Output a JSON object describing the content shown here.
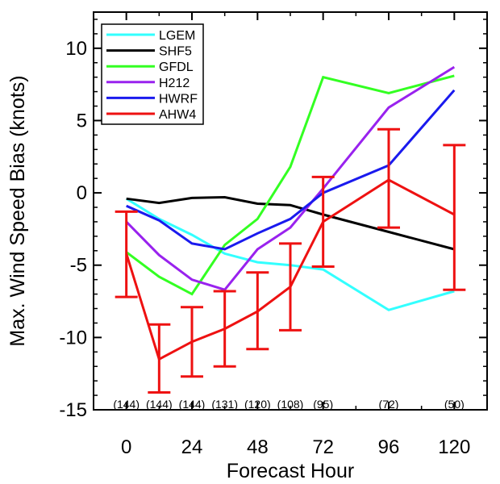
{
  "chart_data": {
    "type": "line",
    "title": "",
    "xlabel": "Forecast Hour",
    "ylabel": "Max. Wind Speed Bias (knots)",
    "xlim": [
      -12,
      132
    ],
    "ylim": [
      -15,
      12.5
    ],
    "xticks": [
      0,
      24,
      48,
      72,
      96,
      120
    ],
    "yticks": [
      -15,
      -10,
      -5,
      0,
      5,
      10
    ],
    "legend_position": "top-left",
    "series": [
      {
        "name": "LGEM",
        "color": "#33ffff",
        "x": [
          0,
          12,
          24,
          36,
          48,
          60,
          72,
          96,
          120
        ],
        "y": [
          -0.4,
          -1.8,
          -2.9,
          -4.2,
          -4.8,
          -5.0,
          -5.3,
          -8.1,
          -6.8
        ]
      },
      {
        "name": "SHF5",
        "color": "#000000",
        "x": [
          0,
          12,
          24,
          36,
          48,
          60,
          72,
          96,
          120
        ],
        "y": [
          -0.4,
          -0.7,
          -0.35,
          -0.3,
          -0.75,
          -0.85,
          -1.5,
          -2.7,
          -3.9
        ]
      },
      {
        "name": "GFDL",
        "color": "#33ff22",
        "x": [
          0,
          12,
          24,
          36,
          48,
          60,
          72,
          96,
          120
        ],
        "y": [
          -4.1,
          -5.8,
          -7.0,
          -3.6,
          -1.8,
          1.8,
          8.0,
          6.9,
          8.1
        ]
      },
      {
        "name": "H212",
        "color": "#9922ee",
        "x": [
          0,
          12,
          24,
          36,
          48,
          60,
          72,
          96,
          120
        ],
        "y": [
          -2.0,
          -4.3,
          -6.0,
          -6.7,
          -3.9,
          -2.4,
          0.3,
          5.9,
          8.7
        ]
      },
      {
        "name": "HWRF",
        "color": "#1a1aee",
        "x": [
          0,
          12,
          24,
          36,
          48,
          60,
          72,
          96,
          120
        ],
        "y": [
          -0.9,
          -1.9,
          -3.5,
          -3.9,
          -2.8,
          -1.8,
          0.0,
          1.9,
          7.1
        ]
      },
      {
        "name": "AHW4",
        "color": "#ee1111",
        "x": [
          0,
          12,
          24,
          36,
          48,
          60,
          72,
          96,
          120
        ],
        "y": [
          -4.2,
          -11.5,
          -10.3,
          -9.4,
          -8.2,
          -6.5,
          -2.0,
          0.9,
          -1.5
        ],
        "error_low": [
          -7.2,
          -13.8,
          -12.7,
          -12.0,
          -10.8,
          -9.5,
          -5.1,
          -2.4,
          -6.7
        ],
        "error_high": [
          -1.3,
          -9.1,
          -7.9,
          -6.8,
          -5.5,
          -3.5,
          1.1,
          4.4,
          3.3
        ]
      }
    ],
    "sample_counts": [
      {
        "x": 0,
        "label": "(144)"
      },
      {
        "x": 12,
        "label": "(144)"
      },
      {
        "x": 24,
        "label": "(144)"
      },
      {
        "x": 36,
        "label": "(131)"
      },
      {
        "x": 48,
        "label": "(120)"
      },
      {
        "x": 60,
        "label": "(108)"
      },
      {
        "x": 72,
        "label": "(95)"
      },
      {
        "x": 96,
        "label": "(72)"
      },
      {
        "x": 120,
        "label": "(50)"
      }
    ]
  }
}
